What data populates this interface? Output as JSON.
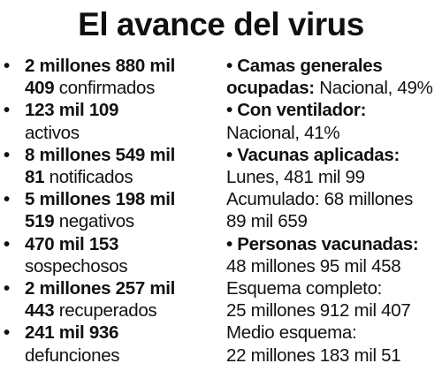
{
  "title": "El avance del virus",
  "left": [
    {
      "line1": "2 millones 880 mil",
      "bold2": "409",
      "rest2": " confirmados"
    },
    {
      "line1": "123 mil 109",
      "bold2": "",
      "rest2": "activos"
    },
    {
      "line1": "8 millones 549 mil",
      "bold2": "81",
      "rest2": " notificados"
    },
    {
      "line1": "5 millones 198 mil",
      "bold2": "519",
      "rest2": " negativos"
    },
    {
      "line1": "470 mil 153",
      "bold2": "",
      "rest2": "sospechosos"
    },
    {
      "line1": "2 millones 257 mil",
      "bold2": "443",
      "rest2": " recuperados"
    },
    {
      "line1": "241 mil 936",
      "bold2": "",
      "rest2": "defunciones"
    }
  ],
  "right": {
    "camas_head1": "• Camas generales",
    "camas_head2": "ocupadas:",
    "camas_value": " Nacional, 49%",
    "vent_head": "• Con ventilador:",
    "vent_value": "Nacional, 41%",
    "vac_head": "• Vacunas aplicadas:",
    "vac_lunes": "Lunes, 481 mil 99",
    "vac_acum1": "Acumulado: 68 millones",
    "vac_acum2": "89 mil 659",
    "pers_head": "• Personas vacunadas:",
    "pers_total": "48 millones 95 mil 458",
    "esq_label": "Esquema completo:",
    "esq_value": "25 millones 912 mil 407",
    "medio_label": "Medio esquema:",
    "medio_value": "22 millones 183 mil 51"
  }
}
